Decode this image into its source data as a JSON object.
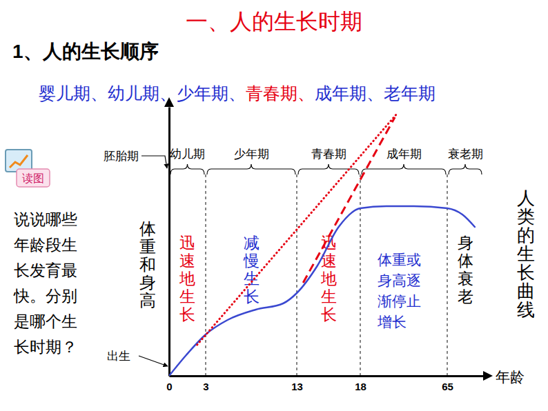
{
  "page": {
    "title": "一、人的生长时期",
    "heading": "1、人的生长顺序",
    "stages": [
      "婴儿期",
      "幼儿期",
      "少年期",
      "青春期",
      "成年期",
      "老年期"
    ],
    "separator": "、",
    "highlight": "青春期",
    "icon_label": "读图",
    "question": "说说哪些年龄段生长发育最快。分别是哪个生长时期？"
  },
  "chart_data": {
    "type": "line",
    "title": "人类的生长曲线",
    "x_label": "年龄",
    "y_label": "体重和身高",
    "birth_label": "出生",
    "embryo_label": "胚胎期",
    "xlim": [
      0,
      80
    ],
    "xticks": [
      0,
      3,
      13,
      18,
      65
    ],
    "ylim": [
      0,
      130
    ],
    "grid": true,
    "tick_labels": "x",
    "series": [
      {
        "color": "#3a48d0",
        "line_style": "solid",
        "x": [
          0,
          1.4,
          3,
          5.4,
          8.5,
          11.5,
          13,
          14.6,
          16.3,
          18,
          32,
          47,
          65,
          71.3,
          76.5
        ],
        "values": [
          0,
          10,
          20,
          27,
          32,
          35,
          40,
          53,
          72,
          81,
          82,
          82,
          81,
          78,
          72
        ]
      },
      {
        "color": "#e60012",
        "line_style": "dotted",
        "x": [
          2.3,
          38.1
        ],
        "values": [
          15,
          127
        ]
      },
      {
        "color": "#e60012",
        "line_style": "dashed",
        "x": [
          13.5,
          36.7
        ],
        "values": [
          45,
          125
        ]
      }
    ],
    "periods": [
      {
        "label": "幼儿期",
        "from": 0,
        "to": 3,
        "note": {
          "text": "迅速地生长",
          "color": "#e60012"
        }
      },
      {
        "label": "少年期",
        "from": 3,
        "to": 13,
        "note": {
          "text": "减慢生长",
          "color": "#1f2fcf"
        }
      },
      {
        "label": "青春期",
        "from": 13,
        "to": 18,
        "note": {
          "text": "迅速地生长",
          "color": "#e60012"
        }
      },
      {
        "label": "成年期",
        "from": 18,
        "to": 65,
        "note": {
          "text": "体重或身高逐渐停止增长",
          "color": "#1f2fcf"
        }
      },
      {
        "label": "衰老期",
        "from": 65,
        "to": 80,
        "note": {
          "text": "身体衰老",
          "color": "#000000"
        }
      }
    ]
  }
}
